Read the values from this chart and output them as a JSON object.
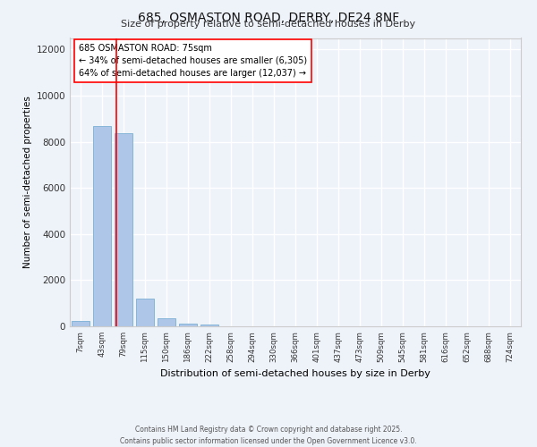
{
  "title_line1": "685, OSMASTON ROAD, DERBY, DE24 8NF",
  "title_line2": "Size of property relative to semi-detached houses in Derby",
  "xlabel": "Distribution of semi-detached houses by size in Derby",
  "ylabel": "Number of semi-detached properties",
  "categories": [
    "7sqm",
    "43sqm",
    "79sqm",
    "115sqm",
    "150sqm",
    "186sqm",
    "222sqm",
    "258sqm",
    "294sqm",
    "330sqm",
    "366sqm",
    "401sqm",
    "437sqm",
    "473sqm",
    "509sqm",
    "545sqm",
    "581sqm",
    "616sqm",
    "652sqm",
    "688sqm",
    "724sqm"
  ],
  "values": [
    250,
    8680,
    8380,
    1200,
    340,
    130,
    60,
    0,
    0,
    0,
    0,
    0,
    0,
    0,
    0,
    0,
    0,
    0,
    0,
    0,
    0
  ],
  "bar_color": "#aec6e8",
  "bar_edge_color": "#7aafd4",
  "red_line_x": 1.67,
  "annotation_text_line1": "685 OSMASTON ROAD: 75sqm",
  "annotation_text_line2": "← 34% of semi-detached houses are smaller (6,305)",
  "annotation_text_line3": "64% of semi-detached houses are larger (12,037) →",
  "ylim": [
    0,
    12500
  ],
  "yticks": [
    0,
    2000,
    4000,
    6000,
    8000,
    10000,
    12000
  ],
  "background_color": "#eef2f9",
  "grid_color": "#ffffff",
  "footer_line1": "Contains HM Land Registry data © Crown copyright and database right 2025.",
  "footer_line2": "Contains public sector information licensed under the Open Government Licence v3.0."
}
